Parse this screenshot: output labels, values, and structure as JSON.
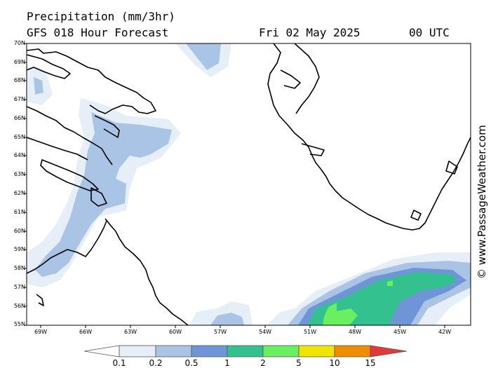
{
  "header": {
    "title": "Precipitation (mm/3hr)",
    "model_line": "GFS 018 Hour Forecast",
    "date": "Fri 02 May 2025",
    "time": "00 UTC"
  },
  "map": {
    "lat_labels": [
      "70N",
      "69N",
      "68N",
      "67N",
      "66N",
      "65N",
      "64N",
      "63N",
      "62N",
      "61N",
      "60N",
      "59N",
      "58N",
      "57N",
      "56N",
      "55N"
    ],
    "lon_labels": [
      "69W",
      "66W",
      "63W",
      "60W",
      "57W",
      "54W",
      "51W",
      "48W",
      "45W",
      "42W"
    ],
    "land_color": "#ffffff",
    "coast_color": "#000000"
  },
  "legend": {
    "ticks": [
      "0.1",
      "0.2",
      "0.5",
      "1",
      "2",
      "5",
      "10",
      "15"
    ],
    "colors": [
      "#e6eef8",
      "#a9c4e4",
      "#6e95d6",
      "#32c18f",
      "#68f060",
      "#f0e400",
      "#f08c00",
      "#e23838"
    ]
  },
  "watermark": "© www.PassageWeather.com"
}
